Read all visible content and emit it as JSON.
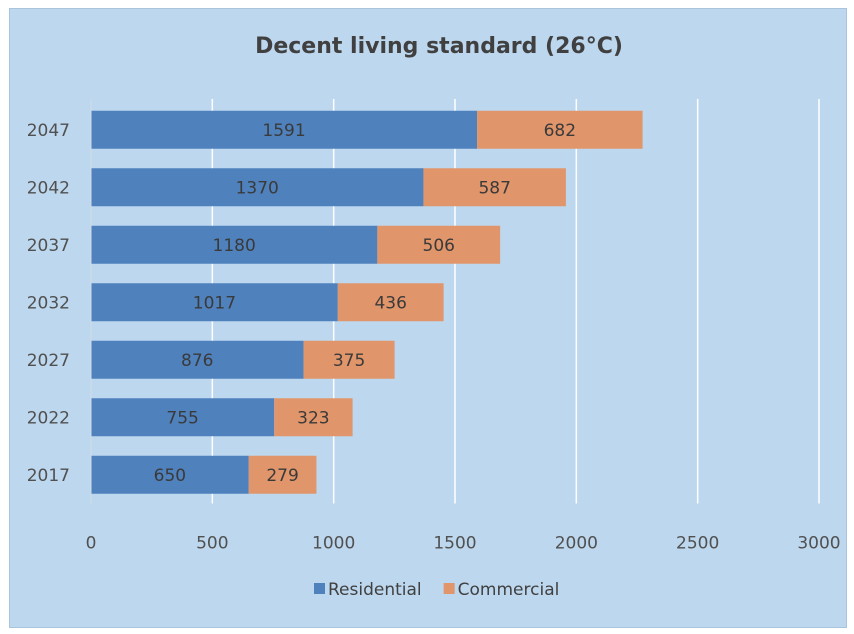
{
  "chart_data": {
    "type": "bar",
    "orientation": "horizontal",
    "stacked": true,
    "title": "Decent living standard (26°C)",
    "categories": [
      "2047",
      "2042",
      "2037",
      "2032",
      "2027",
      "2022",
      "2017"
    ],
    "series": [
      {
        "name": "Residential",
        "values": [
          1591,
          1370,
          1180,
          1017,
          876,
          755,
          650
        ],
        "color": "#4f81bd"
      },
      {
        "name": "Commercial",
        "values": [
          682,
          587,
          506,
          436,
          375,
          323,
          279
        ],
        "color": "#e0956a"
      }
    ],
    "xlim": [
      0,
      3000
    ],
    "x_ticks": [
      "0",
      "500",
      "1000",
      "1500",
      "2000",
      "2500",
      "3000"
    ],
    "grid": true,
    "legend_position": "bottom",
    "data_labels": true
  },
  "colors": {
    "background": "#bdd7ee",
    "residential": "#4f81bd",
    "commercial": "#e0956a",
    "gridline": "#ffffff"
  }
}
